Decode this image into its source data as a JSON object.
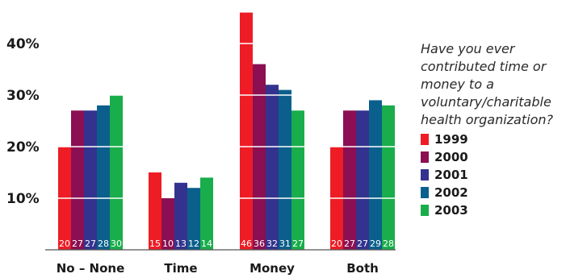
{
  "chart_data": {
    "type": "bar",
    "title": "",
    "xlabel": "",
    "ylabel": "",
    "categories": [
      "No – None",
      "Time",
      "Money",
      "Both"
    ],
    "series": [
      {
        "name": "1999",
        "color": "#ee1c25",
        "values": [
          20,
          15,
          46,
          20
        ]
      },
      {
        "name": "2000",
        "color": "#8b0f52",
        "values": [
          27,
          10,
          36,
          27
        ]
      },
      {
        "name": "2001",
        "color": "#33338f",
        "values": [
          27,
          13,
          32,
          27
        ]
      },
      {
        "name": "2002",
        "color": "#0b5f8c",
        "values": [
          28,
          12,
          31,
          29
        ]
      },
      {
        "name": "2003",
        "color": "#19ad4b",
        "values": [
          30,
          14,
          27,
          28
        ]
      }
    ],
    "ylim": [
      0,
      50
    ],
    "yticks": [
      10,
      20,
      30,
      40
    ],
    "ytick_labels": [
      "10%",
      "20%",
      "30%",
      "40%"
    ],
    "grid": true,
    "legend_position": "right"
  },
  "legend": {
    "question": "Have you ever contributed time or money to a voluntary/charitable health organization?"
  }
}
